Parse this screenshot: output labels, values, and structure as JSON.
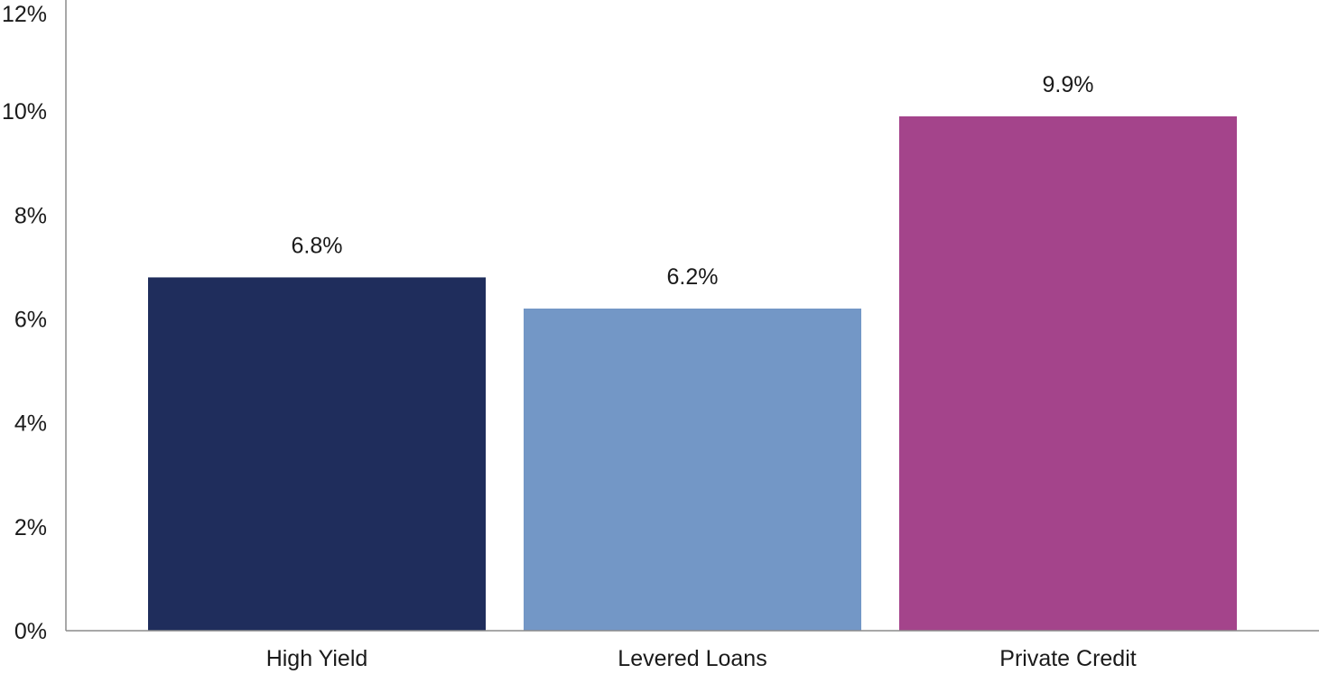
{
  "chart_data": {
    "type": "bar",
    "categories": [
      "High Yield",
      "Levered Loans",
      "Private Credit"
    ],
    "values": [
      6.8,
      6.2,
      9.9
    ],
    "data_labels": [
      "6.8%",
      "6.2%",
      "9.9%"
    ],
    "colors": [
      "#1f2d5c",
      "#7397c6",
      "#a4448b"
    ],
    "ylim": [
      0,
      12
    ],
    "yticks": [
      0,
      2,
      4,
      6,
      8,
      10,
      12
    ],
    "ytick_labels": [
      "0%",
      "2%",
      "4%",
      "6%",
      "8%",
      "10%",
      "12%"
    ],
    "title": "",
    "xlabel": "",
    "ylabel": "",
    "grid": false,
    "legend": "none"
  }
}
